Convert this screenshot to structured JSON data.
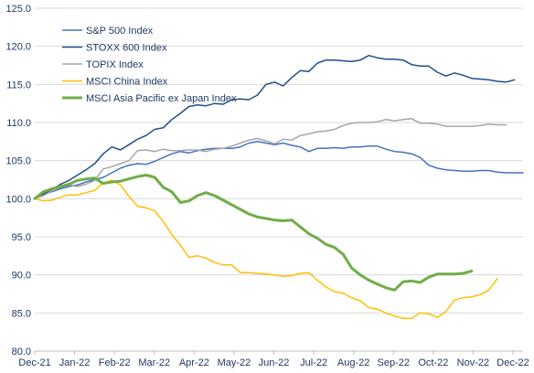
{
  "chart_data": {
    "type": "line",
    "title": "",
    "xlabel": "",
    "ylabel": "",
    "ylim": [
      80,
      125
    ],
    "yticks": [
      "80.0",
      "85.0",
      "90.0",
      "95.0",
      "100.0",
      "105.0",
      "110.0",
      "115.0",
      "120.0",
      "125.0"
    ],
    "ytick_values": [
      80,
      85,
      90,
      95,
      100,
      105,
      110,
      115,
      120,
      125
    ],
    "xticks": [
      "Dec-21",
      "Jan-22",
      "Feb-22",
      "Mar-22",
      "Apr-22",
      "May-22",
      "Jun-22",
      "Jul-22",
      "Aug-22",
      "Sep-22",
      "Oct-22",
      "Nov-22",
      "Dec-22"
    ],
    "grid": "horizontal",
    "legend_position": "top-left",
    "x_weekly_start": "2021-12-31",
    "series": [
      {
        "name": "S&P 500 Index",
        "color": "#4472c4",
        "width": 1.5,
        "values": [
          100.0,
          100.6,
          100.9,
          101.3,
          101.6,
          101.8,
          102.2,
          102.5,
          102.8,
          103.4,
          104.0,
          104.4,
          104.6,
          104.5,
          104.9,
          105.4,
          105.9,
          106.2,
          106.0,
          106.3,
          106.5,
          106.6,
          106.6,
          106.6,
          106.8,
          107.3,
          107.5,
          107.3,
          107.1,
          107.3,
          107.0,
          106.8,
          106.2,
          106.6,
          106.6,
          106.7,
          106.6,
          106.8,
          106.8,
          106.9,
          106.9,
          106.5,
          106.2,
          106.1,
          105.9,
          105.4,
          104.4,
          104.0,
          103.8,
          103.7,
          103.6,
          103.6,
          103.7,
          103.7,
          103.5,
          103.4,
          103.4,
          103.4
        ]
      },
      {
        "name": "STOXX 600 Index",
        "color": "#1f4e8c",
        "width": 1.5,
        "values": [
          100.0,
          100.6,
          101.1,
          101.9,
          102.4,
          103.1,
          103.8,
          104.6,
          105.9,
          106.8,
          106.4,
          107.1,
          107.8,
          108.3,
          109.1,
          109.3,
          110.4,
          111.2,
          112.1,
          112.3,
          112.2,
          112.5,
          112.4,
          113.0,
          113.1,
          113.0,
          113.6,
          115.0,
          115.3,
          114.8,
          115.9,
          116.8,
          116.7,
          117.8,
          118.2,
          118.2,
          118.1,
          118.0,
          118.2,
          118.8,
          118.5,
          118.3,
          118.3,
          118.2,
          117.6,
          117.4,
          117.4,
          116.6,
          116.1,
          116.5,
          116.2,
          115.8,
          115.7,
          115.6,
          115.4,
          115.3,
          115.6
        ]
      },
      {
        "name": "TOPIX Index",
        "color": "#a6a6a6",
        "width": 1.5,
        "values": [
          100.0,
          100.4,
          101.0,
          101.5,
          101.8,
          101.6,
          101.9,
          102.4,
          103.9,
          104.2,
          104.6,
          105.0,
          106.3,
          106.4,
          106.2,
          106.5,
          106.3,
          106.3,
          106.4,
          106.4,
          106.2,
          106.5,
          106.6,
          106.9,
          107.3,
          107.7,
          107.9,
          107.6,
          107.2,
          107.8,
          107.7,
          108.3,
          108.5,
          108.8,
          108.9,
          109.1,
          109.6,
          109.9,
          110.0,
          110.0,
          110.1,
          110.4,
          110.2,
          110.4,
          110.5,
          109.9,
          109.9,
          109.8,
          109.5,
          109.5,
          109.5,
          109.5,
          109.6,
          109.8,
          109.7,
          109.7
        ]
      },
      {
        "name": "MSCI China Index",
        "color": "#ffc000",
        "width": 1.5,
        "values": [
          100.0,
          99.7,
          99.8,
          100.2,
          100.5,
          100.5,
          100.8,
          101.1,
          102.1,
          102.4,
          101.8,
          100.3,
          99.0,
          98.8,
          98.4,
          97.0,
          95.3,
          93.9,
          92.3,
          92.5,
          92.2,
          91.6,
          91.3,
          91.3,
          90.3,
          90.3,
          90.2,
          90.1,
          90.0,
          89.8,
          89.9,
          90.2,
          90.3,
          89.3,
          88.4,
          87.8,
          87.6,
          87.0,
          86.6,
          85.7,
          85.5,
          85.0,
          84.6,
          84.3,
          84.3,
          85.0,
          84.9,
          84.4,
          85.2,
          86.7,
          87.0,
          87.1,
          87.4,
          88.0,
          89.5
        ]
      },
      {
        "name": "MSCI Asia Pacific ex Japan Index",
        "color": "#70ad47",
        "width": 3,
        "values": [
          100.0,
          100.9,
          101.3,
          101.6,
          101.9,
          102.4,
          102.6,
          102.7,
          102.0,
          102.2,
          102.3,
          102.6,
          102.9,
          103.1,
          102.8,
          101.5,
          100.9,
          99.5,
          99.7,
          100.4,
          100.8,
          100.4,
          99.8,
          99.2,
          98.6,
          98.0,
          97.6,
          97.4,
          97.2,
          97.1,
          97.2,
          96.3,
          95.4,
          94.8,
          94.0,
          93.6,
          92.7,
          90.9,
          90.0,
          89.3,
          88.8,
          88.3,
          88.0,
          89.1,
          89.2,
          89.0,
          89.7,
          90.1,
          90.1,
          90.1,
          90.2,
          90.5
        ]
      }
    ]
  }
}
